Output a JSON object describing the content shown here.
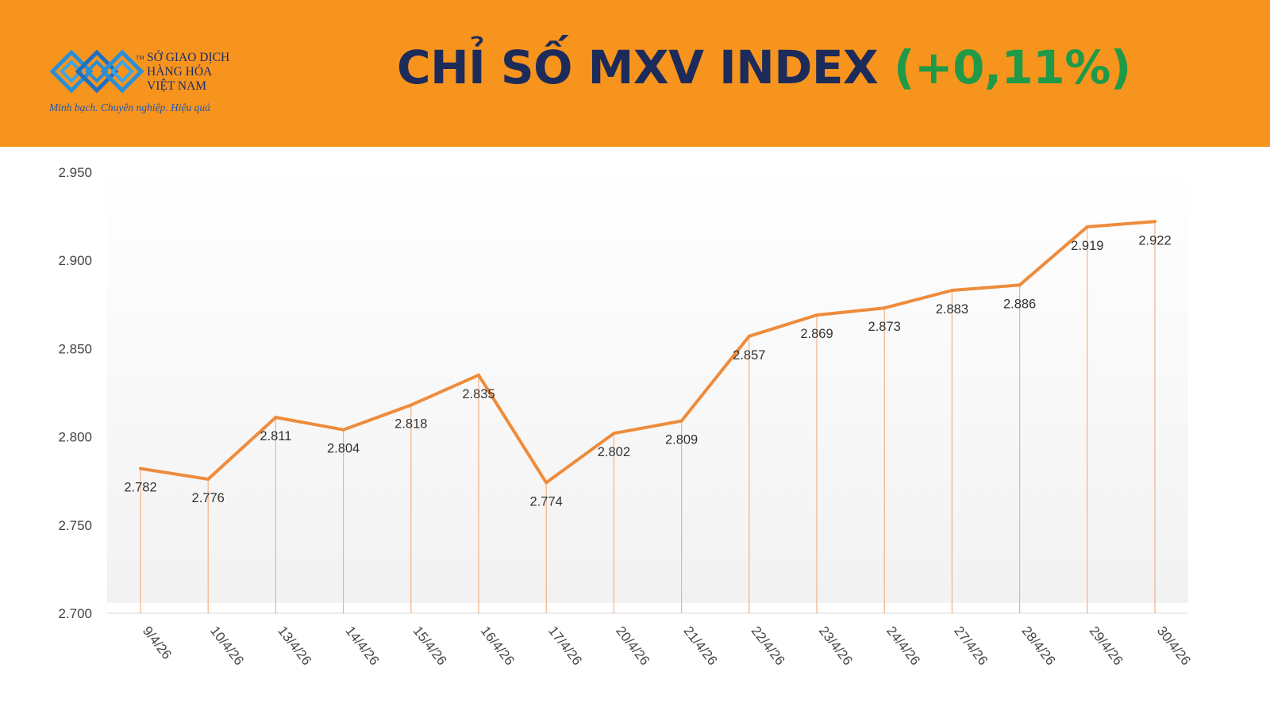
{
  "header": {
    "logo": {
      "name_line1": "SỞ GIAO DỊCH",
      "name_line2": "HÀNG HÓA",
      "name_line3": "VIỆT NAM",
      "trademark": "TM",
      "slogan": "Minh bạch. Chuyên nghiệp. Hiệu quả"
    },
    "title_main": "CHỈ SỐ MXV INDEX",
    "title_change": "(+0,11%)"
  },
  "colors": {
    "header_bg": "#f7941e",
    "title_text": "#1c2b5a",
    "change_positive": "#1e9a48",
    "series_line": "#ee8c3c"
  },
  "chart_data": {
    "type": "line",
    "title": "CHỈ SỐ MXV INDEX (+0,11%)",
    "categories": [
      "9/4/26",
      "10/4/26",
      "13/4/26",
      "14/4/26",
      "15/4/26",
      "16/4/26",
      "17/4/26",
      "20/4/26",
      "21/4/26",
      "22/4/26",
      "23/4/26",
      "24/4/26",
      "27/4/26",
      "28/4/26",
      "29/4/26",
      "30/4/26"
    ],
    "values": [
      2782,
      2776,
      2811,
      2804,
      2818,
      2835,
      2774,
      2802,
      2809,
      2857,
      2869,
      2873,
      2883,
      2886,
      2919,
      2922
    ],
    "value_labels": [
      "2.782",
      "2.776",
      "2.811",
      "2.804",
      "2.818",
      "2.835",
      "2.774",
      "2.802",
      "2.809",
      "2.857",
      "2.869",
      "2.873",
      "2.883",
      "2.886",
      "2.919",
      "2.922"
    ],
    "yticks": [
      2700,
      2750,
      2800,
      2850,
      2900,
      2950
    ],
    "ytick_labels": [
      "2.700",
      "2.750",
      "2.800",
      "2.850",
      "2.900",
      "2.950"
    ],
    "ylim": [
      2700,
      2950
    ],
    "grid": false,
    "drop_lines": true,
    "legend": "none"
  }
}
